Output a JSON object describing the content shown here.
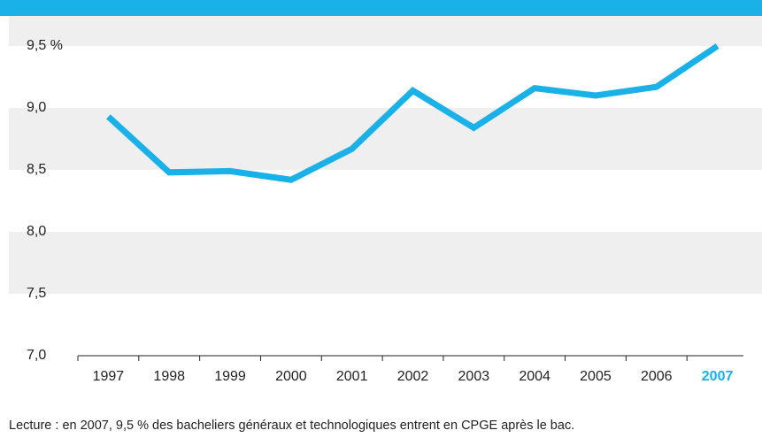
{
  "chart_data": {
    "type": "line",
    "categories": [
      "1997",
      "1998",
      "1999",
      "2000",
      "2001",
      "2002",
      "2003",
      "2004",
      "2005",
      "2006",
      "2007"
    ],
    "series": [
      {
        "color": "#1ab0e8",
        "values": [
          8.93,
          8.48,
          8.49,
          8.42,
          8.67,
          9.14,
          8.84,
          9.16,
          9.1,
          9.17,
          9.5
        ]
      }
    ],
    "ylim": [
      7.0,
      9.5
    ],
    "yticks": [
      {
        "value": 7.0,
        "label": "7,0"
      },
      {
        "value": 7.5,
        "label": "7,5"
      },
      {
        "value": 8.0,
        "label": "8,0"
      },
      {
        "value": 8.5,
        "label": "8,5"
      },
      {
        "value": 9.0,
        "label": "9,0"
      },
      {
        "value": 9.5,
        "label": "9,5 %"
      }
    ],
    "highlight_index": 10,
    "highlight_color": "#1ab0e8",
    "grid": "bands",
    "caption": "Lecture : en 2007, 9,5 % des bacheliers généraux et technologiques entrent en CPGE après le bac."
  }
}
